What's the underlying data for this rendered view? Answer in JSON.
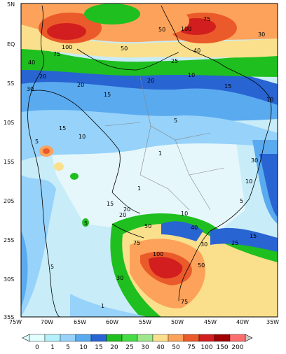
{
  "map": {
    "latitude_labels": [
      "5N",
      "EQ",
      "5S",
      "10S",
      "15S",
      "20S",
      "25S",
      "30S",
      "35S"
    ],
    "longitude_labels": [
      "75W",
      "70W",
      "65W",
      "60W",
      "55W",
      "50W",
      "45W",
      "40W",
      "35W"
    ],
    "contour_labels": [
      "100",
      "75",
      "50",
      "40",
      "30",
      "20",
      "15",
      "10",
      "5",
      "1",
      "100",
      "75",
      "50",
      "40",
      "30",
      "25",
      "20",
      "15",
      "10",
      "5",
      "1",
      "75",
      "50",
      "30",
      "20",
      "15",
      "10",
      "5",
      "100",
      "75",
      "50",
      "40",
      "30",
      "25",
      "20",
      "15",
      "10",
      "5",
      "10",
      "15",
      "20",
      "30",
      "5",
      "1"
    ]
  },
  "colorbar": {
    "tick_labels": [
      "0",
      "1",
      "5",
      "10",
      "15",
      "20",
      "25",
      "30",
      "40",
      "50",
      "75",
      "100",
      "150",
      "200"
    ],
    "colors": [
      "#e1ffff",
      "#b4f0fa",
      "#96d2fa",
      "#5aaaf0",
      "#2864d2",
      "#1fbf1f",
      "#46dc46",
      "#a0e68c",
      "#fae08c",
      "#fda25a",
      "#eb5a2a",
      "#d21e1e",
      "#a00000",
      "#ff6e6e"
    ]
  },
  "palette": {
    "land_base": "#e8f6fb",
    "ocean_base": "#b6e0f2",
    "border": "#000000",
    "state_line": "#888888"
  }
}
